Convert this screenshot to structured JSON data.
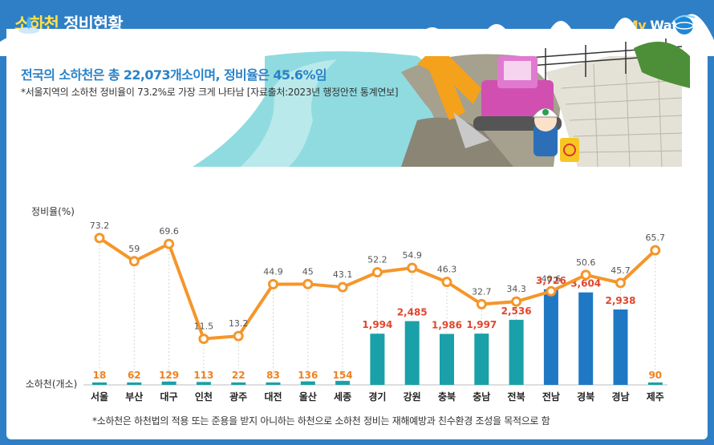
{
  "header": {
    "title_accent": "소하천",
    "title_rest": " 정비현황",
    "brand_my": "My",
    "brand_water": " Water"
  },
  "summary": "전국의 소하천은 총 22,073개소이며, 정비율은 45.6%임",
  "note": "*서울지역의 소하천 정비율이 73.2%로 가장 크게 나타남 [자료출처:2023년 행정안전 통계연보]",
  "footnote": "*소하천은 하천법의 적용 또는 준용을 받지 아니하는 하천으로 소하천 정비는 재해예방과 친수환경 조성을 목적으로 함",
  "colors": {
    "line": "#f5962a",
    "bar_light": "#1aa0a8",
    "bar_dark": "#1f78c3",
    "label_orange": "#f0811e",
    "label_red": "#e2452c"
  },
  "chart_data": {
    "type": "bar+line",
    "categories": [
      "서울",
      "부산",
      "대구",
      "인천",
      "광주",
      "대전",
      "울산",
      "세종",
      "경기",
      "강원",
      "충북",
      "충남",
      "전북",
      "전남",
      "경북",
      "경남",
      "제주"
    ],
    "series": [
      {
        "name": "정비율(%)",
        "type": "line",
        "values": [
          73.2,
          59,
          69.6,
          11.5,
          13.2,
          44.9,
          45,
          43.1,
          52.2,
          54.9,
          46.3,
          32.7,
          34.3,
          40.6,
          50.6,
          45.7,
          65.7
        ]
      },
      {
        "name": "소하천(개소)",
        "type": "bar",
        "values": [
          18,
          62,
          129,
          113,
          22,
          83,
          136,
          154,
          1994,
          2485,
          1986,
          1997,
          2536,
          3726,
          3604,
          2938,
          90
        ]
      }
    ],
    "line_labels": [
      "73.2",
      "59",
      "69.6",
      "11.5",
      "13.2",
      "44.9",
      "45",
      "43.1",
      "52.2",
      "54.9",
      "46.3",
      "32.7",
      "34.3",
      "40.6",
      "50.6",
      "45.7",
      "65.7"
    ],
    "bar_labels": [
      "18",
      "62",
      "129",
      "113",
      "22",
      "83",
      "136",
      "154",
      "1,994",
      "2,485",
      "1,986",
      "1,997",
      "2,536",
      "3,726",
      "3,604",
      "2,938",
      "90"
    ],
    "ylabel_line": "정비율(%)",
    "ylabel_bar": "소하천(개소)",
    "line_range": [
      0,
      80
    ],
    "bar_range": [
      0,
      4000
    ],
    "grid": false,
    "legend": "none"
  }
}
